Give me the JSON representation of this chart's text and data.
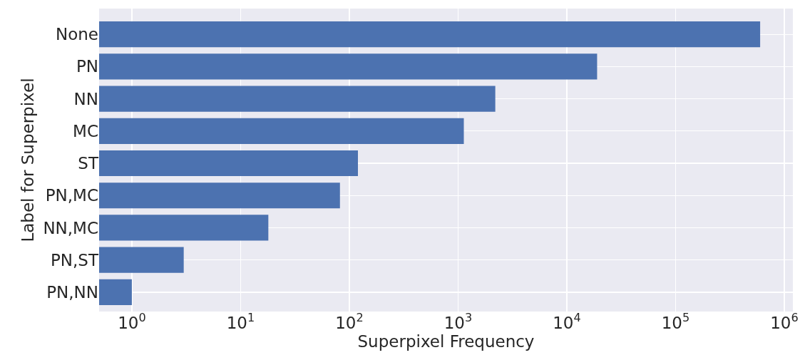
{
  "chart_data": {
    "type": "bar",
    "orientation": "horizontal",
    "log": "x",
    "xlabel": "Superpixel Frequency",
    "ylabel": "Label for Superpixel",
    "categories": [
      "None",
      "PN",
      "NN",
      "MC",
      "ST",
      "PN,MC",
      "NN,MC",
      "PN,ST",
      "PN,NN"
    ],
    "values": [
      600000,
      19000,
      2200,
      1130,
      120,
      82,
      18,
      3,
      1
    ],
    "color": "#4c72b0",
    "xlim": [
      0.5,
      1200000
    ],
    "xticks": [
      {
        "value": 1,
        "label": "10$^{0}$"
      },
      {
        "value": 10,
        "label": "10$^{1}$"
      },
      {
        "value": 100,
        "label": "10$^{2}$"
      },
      {
        "value": 1000,
        "label": "10$^{3}$"
      },
      {
        "value": 10000,
        "label": "10$^{4}$"
      },
      {
        "value": 100000,
        "label": "10$^{5}$"
      },
      {
        "value": 1000000,
        "label": "10$^{6}$"
      }
    ],
    "grid": true
  }
}
